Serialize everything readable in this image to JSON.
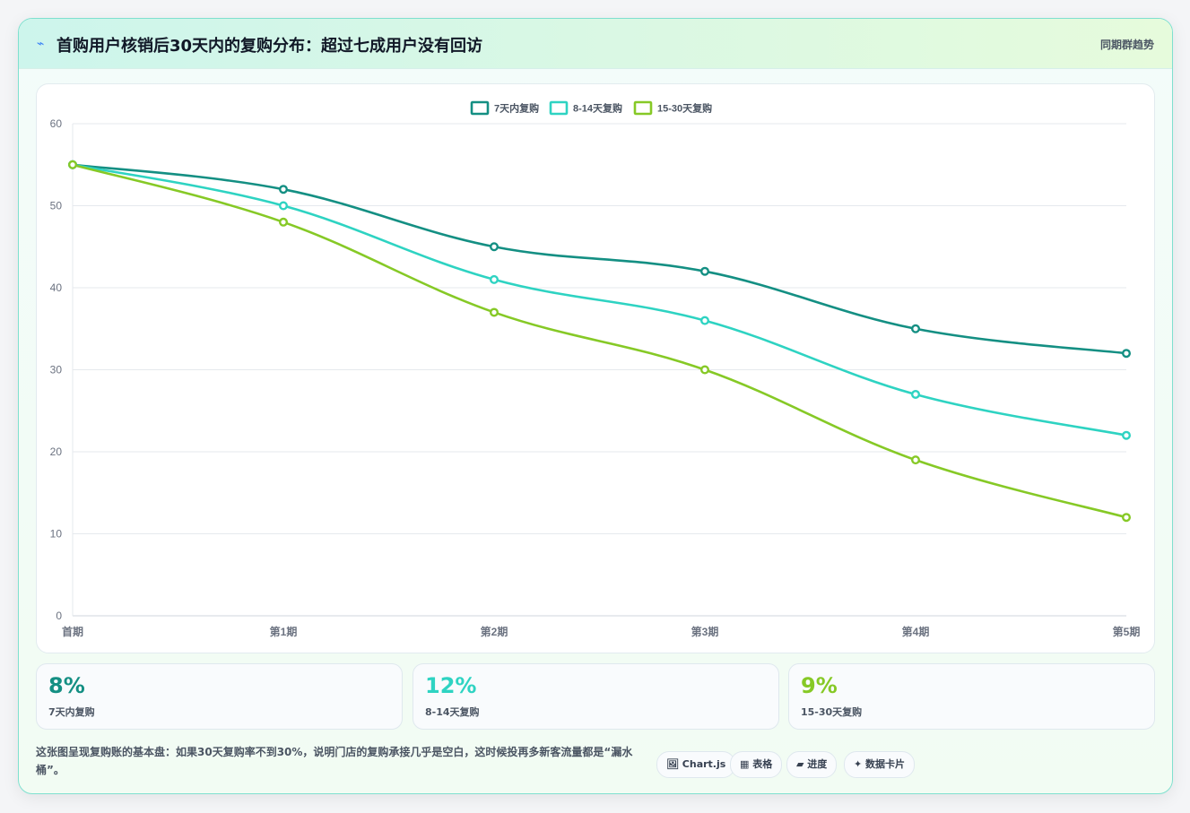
{
  "header": {
    "icon": "lightning-icon",
    "title": "首购用户核销后30天内的复购分布：超过七成用户没有回访",
    "tag": "同期群趋势"
  },
  "chart_data": {
    "type": "line",
    "categories": [
      "首期",
      "第1期",
      "第2期",
      "第3期",
      "第4期",
      "第5期"
    ],
    "series": [
      {
        "name": "7天内复购",
        "color": "#148f83",
        "values": [
          55,
          52,
          45,
          42,
          35,
          32
        ]
      },
      {
        "name": "8-14天复购",
        "color": "#2ed3c2",
        "values": [
          55,
          50,
          41,
          36,
          27,
          22
        ]
      },
      {
        "name": "15-30天复购",
        "color": "#86c926",
        "values": [
          55,
          48,
          37,
          30,
          19,
          12
        ]
      }
    ],
    "ylim": [
      0,
      60
    ],
    "yticks": [
      "0",
      "10",
      "20",
      "30",
      "40",
      "50",
      "60"
    ],
    "grid": true,
    "legend": "top-center"
  },
  "stats": [
    {
      "value": "8%",
      "label": "7天内复购",
      "color": "#148f83"
    },
    {
      "value": "12%",
      "label": "8-14天复购",
      "color": "#2ed3c2"
    },
    {
      "value": "9%",
      "label": "15-30天复购",
      "color": "#86c926"
    }
  ],
  "note": "这张图呈现复购账的基本盘：如果30天复购率不到30%，说明门店的复购承接几乎是空白，这时候投再多新客流量都是“漏水桶”。",
  "chips": [
    {
      "icon": "chart-icon",
      "label": "🖼 Chart.js"
    },
    {
      "icon": "table-icon",
      "label": "▦ 表格"
    },
    {
      "icon": "progress-icon",
      "label": "▰ 进度"
    },
    {
      "icon": "sparkle-icon",
      "label": "✦ 数据卡片"
    }
  ]
}
